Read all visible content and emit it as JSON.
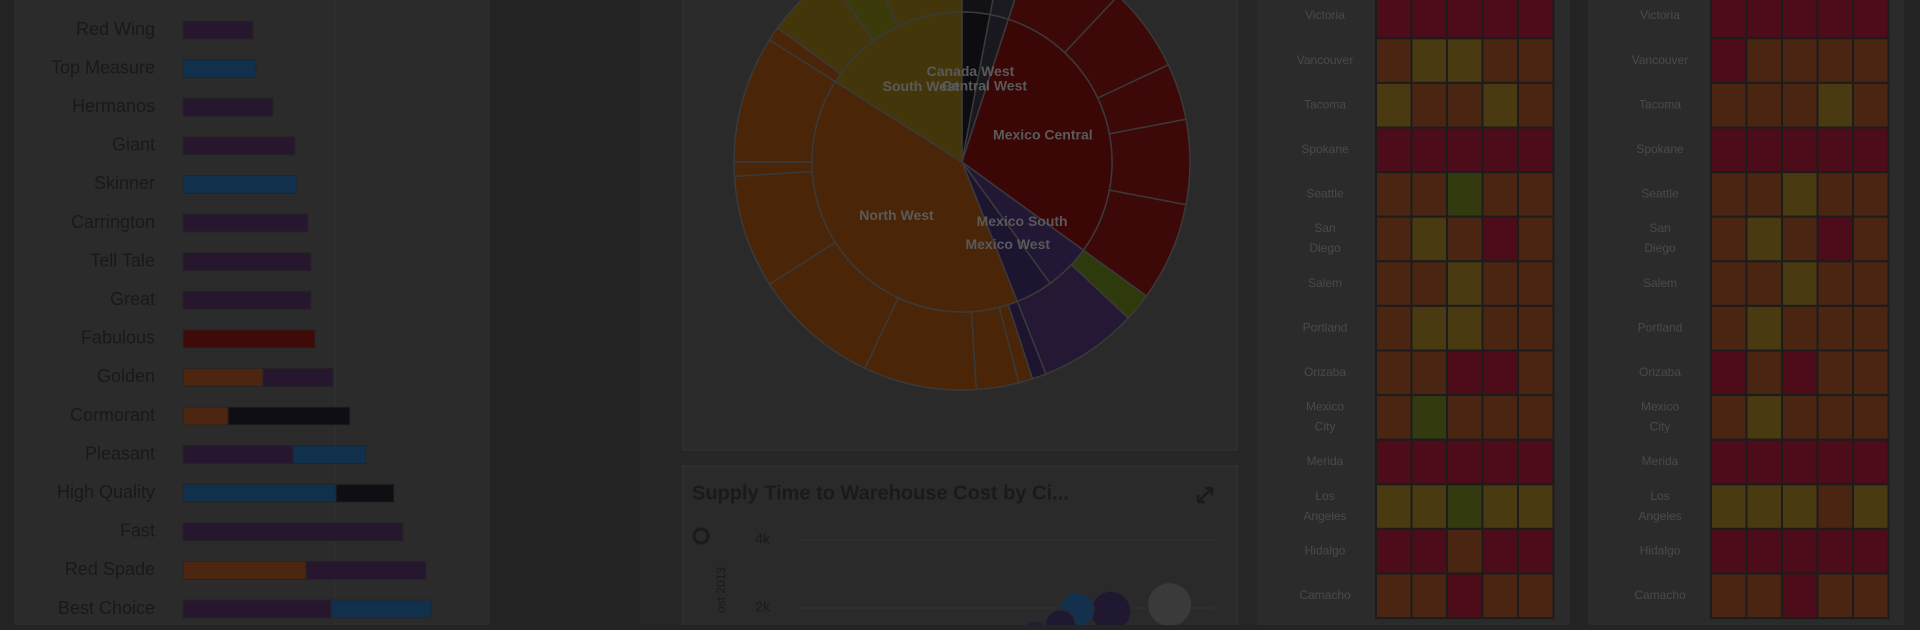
{
  "bar_panel": {
    "rows": [
      {
        "label": "Red Wing",
        "segments": [
          {
            "color": "#26162e",
            "value": 70
          }
        ]
      },
      {
        "label": "Top Measure",
        "segments": [
          {
            "color": "#11304c",
            "value": 73
          }
        ]
      },
      {
        "label": "Hermanos",
        "segments": [
          {
            "color": "#26162e",
            "value": 90
          }
        ]
      },
      {
        "label": "Giant",
        "segments": [
          {
            "color": "#26162e",
            "value": 112
          }
        ]
      },
      {
        "label": "Skinner",
        "segments": [
          {
            "color": "#11304c",
            "value": 114
          }
        ]
      },
      {
        "label": "Carrington",
        "segments": [
          {
            "color": "#26162e",
            "value": 125
          }
        ]
      },
      {
        "label": "Tell Tale",
        "segments": [
          {
            "color": "#26162e",
            "value": 128
          }
        ]
      },
      {
        "label": "Great",
        "segments": [
          {
            "color": "#26162e",
            "value": 128
          }
        ]
      },
      {
        "label": "Fabulous",
        "segments": [
          {
            "color": "#3e0b09",
            "value": 132
          }
        ]
      },
      {
        "label": "Golden",
        "segments": [
          {
            "color": "#4c2610",
            "value": 80
          },
          {
            "color": "#26162e",
            "value": 70
          }
        ]
      },
      {
        "label": "Cormorant",
        "segments": [
          {
            "color": "#4c2610",
            "value": 45
          },
          {
            "color": "#0f0f13",
            "value": 122
          }
        ]
      },
      {
        "label": "Pleasant",
        "segments": [
          {
            "color": "#26162e",
            "value": 110
          },
          {
            "color": "#11304c",
            "value": 73
          }
        ]
      },
      {
        "label": "High Quality",
        "segments": [
          {
            "color": "#11304c",
            "value": 153
          },
          {
            "color": "#0f0f13",
            "value": 58
          }
        ]
      },
      {
        "label": "Fast",
        "segments": [
          {
            "color": "#26162e",
            "value": 220
          }
        ]
      },
      {
        "label": "Red Spade",
        "segments": [
          {
            "color": "#4c2610",
            "value": 123
          },
          {
            "color": "#26162e",
            "value": 120
          }
        ]
      },
      {
        "label": "Best Choice",
        "segments": [
          {
            "color": "#26162e",
            "value": 148
          },
          {
            "color": "#11304c",
            "value": 100
          }
        ]
      }
    ]
  },
  "sunburst": {
    "inner": [
      {
        "label": "Canada West",
        "value": 3,
        "color": "#0d0d11"
      },
      {
        "label": "Central West",
        "value": 2,
        "color": "#18181e"
      },
      {
        "label": "Mexico Central",
        "value": 30,
        "color": "#3a0606"
      },
      {
        "label": "Mexico South",
        "value": 5,
        "color": "#221734"
      },
      {
        "label": "Mexico West",
        "value": 4,
        "color": "#1d1430"
      },
      {
        "label": "North West",
        "value": 40,
        "color": "#4a2508"
      },
      {
        "label": "South West",
        "value": 16,
        "color": "#42360a"
      }
    ],
    "outer": [
      {
        "value": 3,
        "color": "#111116"
      },
      {
        "value": 2,
        "color": "#1a1a20"
      },
      {
        "value": 7,
        "color": "#3c0808"
      },
      {
        "value": 6,
        "color": "#3c0808"
      },
      {
        "value": 4,
        "color": "#3c0808"
      },
      {
        "value": 6,
        "color": "#3c0808"
      },
      {
        "value": 7,
        "color": "#3c0808"
      },
      {
        "value": 2,
        "color": "#2e3a0c"
      },
      {
        "value": 7,
        "color": "#241834"
      },
      {
        "value": 1,
        "color": "#1d1430"
      },
      {
        "value": 1,
        "color": "#4a2508"
      },
      {
        "value": 3,
        "color": "#4a2508"
      },
      {
        "value": 8,
        "color": "#4a2508"
      },
      {
        "value": 9,
        "color": "#4a2508"
      },
      {
        "value": 8,
        "color": "#4a2508"
      },
      {
        "value": 1,
        "color": "#4a2508"
      },
      {
        "value": 9,
        "color": "#4a2508"
      },
      {
        "value": 1,
        "color": "#4a2508"
      },
      {
        "value": 5,
        "color": "#42360a"
      },
      {
        "value": 3,
        "color": "#3a3a0a"
      },
      {
        "value": 7,
        "color": "#42360a"
      }
    ]
  },
  "scatter_panel": {
    "title": "Supply Time to Warehouse Cost by Ci...",
    "axis_label": "ost 2013",
    "ylim": [
      0,
      5000
    ],
    "xlim": [
      0,
      100
    ],
    "yticks": [
      {
        "value": 4000,
        "label": "4k"
      },
      {
        "value": 2000,
        "label": "2k"
      }
    ],
    "points": [
      {
        "x": 88,
        "y": 2100,
        "size": 22,
        "color": "#3a3a3a"
      },
      {
        "x": 74,
        "y": 1900,
        "size": 20,
        "color": "#1f1830"
      },
      {
        "x": 66,
        "y": 1950,
        "size": 17,
        "color": "#13304c"
      },
      {
        "x": 62,
        "y": 1500,
        "size": 15,
        "color": "#1f1830"
      },
      {
        "x": 56,
        "y": 1200,
        "size": 14,
        "color": "#261a36"
      },
      {
        "x": 50,
        "y": 1000,
        "size": 13,
        "color": "#1f1830"
      }
    ]
  },
  "heatmaps": {
    "palette": {
      "r": "#4c0c1a",
      "o": "#4a2612",
      "y": "#4a3a12",
      "g": "#343a10"
    },
    "row_labels": [
      "Victoria",
      "Vancouver",
      "Tacoma",
      "Spokane",
      "Seattle",
      "San Diego",
      "Salem",
      "Portland",
      "Orizaba",
      "Mexico City",
      "Merida",
      "Los Angeles",
      "Hidalgo",
      "Camacho"
    ],
    "grids": [
      [
        "rrrrr",
        "oyyoo",
        "yooyo",
        "rrrrr",
        "oogoo",
        "oyoro",
        "ooyoo",
        "oyyoo",
        "oorro",
        "ogooo",
        "rrrrr",
        "yygyy",
        "rrorr",
        "ooroo"
      ],
      [
        "rrrrr",
        "roooo",
        "oooyo",
        "rrrrr",
        "ooyoo",
        "oyoro",
        "ooyoo",
        "oyooo",
        "roroo",
        "oyooo",
        "rrrrr",
        "yyyoy",
        "rrrrr",
        "ooroo"
      ]
    ]
  }
}
